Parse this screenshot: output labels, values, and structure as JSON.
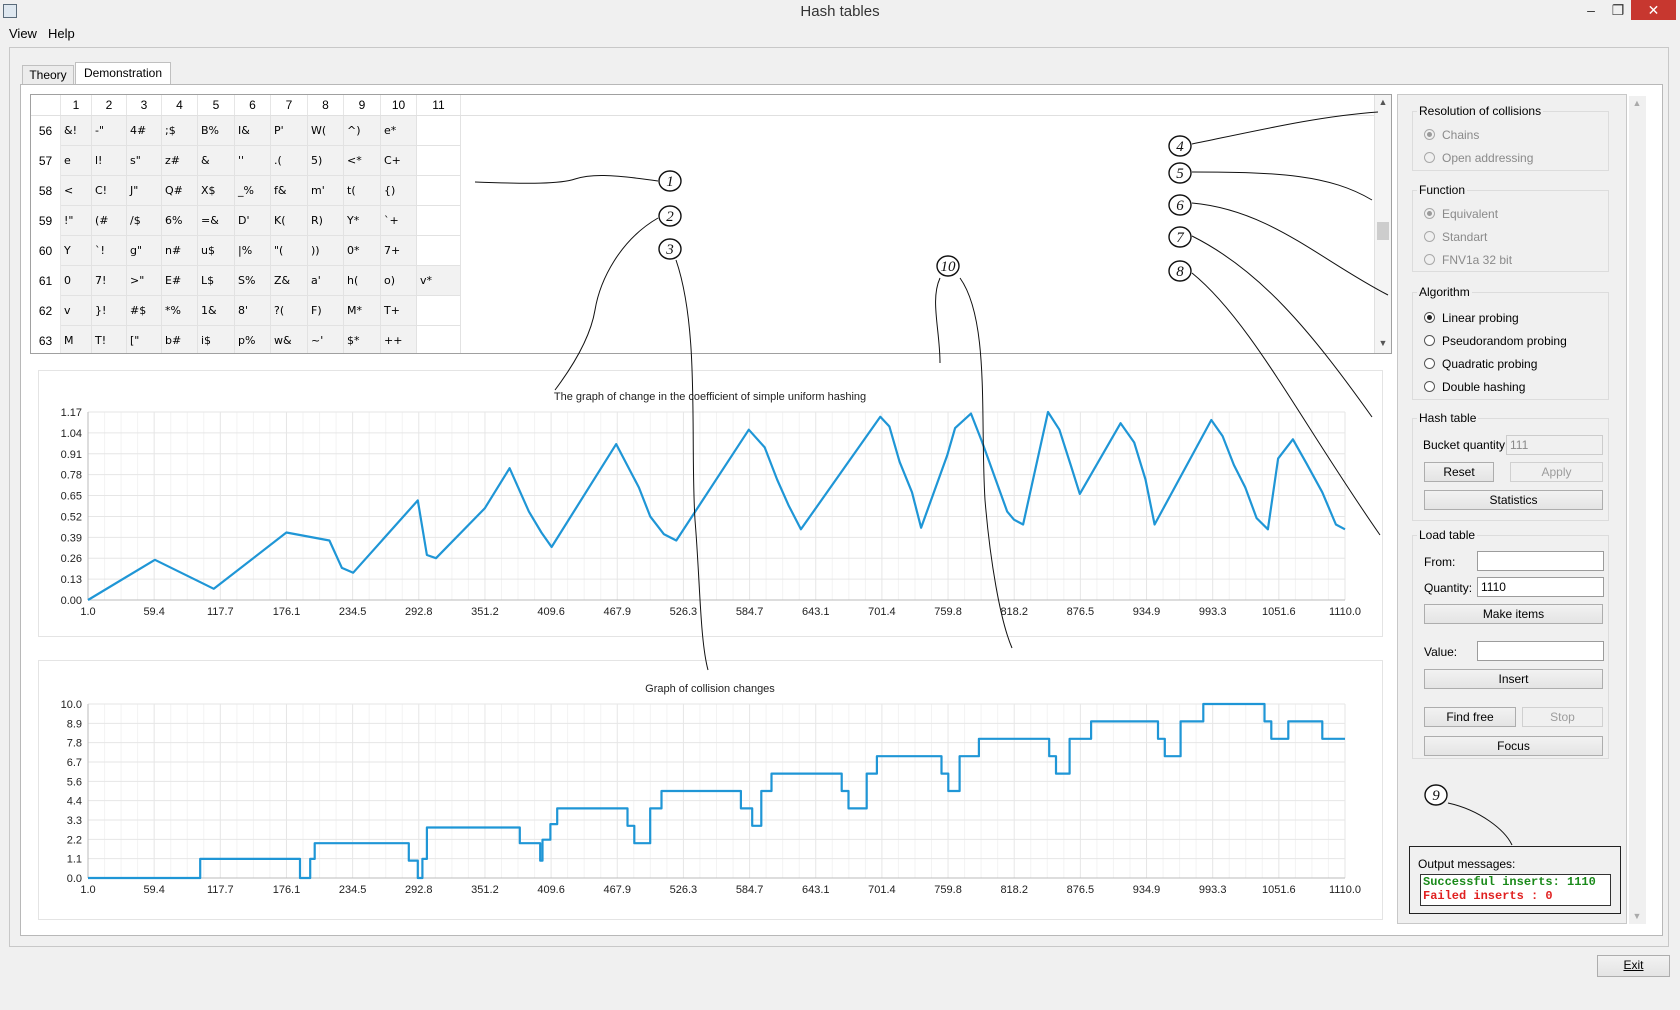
{
  "window": {
    "title": "Hash tables",
    "min": "–",
    "max": "❐",
    "close": "✕"
  },
  "menu": [
    {
      "label": "View"
    },
    {
      "label": "Help"
    }
  ],
  "tabs": [
    {
      "label": "Theory"
    },
    {
      "label": "Demonstration"
    }
  ],
  "grid": {
    "columns": [
      "1",
      "2",
      "3",
      "4",
      "5",
      "6",
      "7",
      "8",
      "9",
      "10",
      "11"
    ],
    "rows": [
      {
        "idx": "56",
        "cells": [
          "&!",
          "-\"",
          "4#",
          ";$",
          "B%",
          "I&",
          "P'",
          "W(",
          "^)",
          "e*",
          ""
        ]
      },
      {
        "idx": "57",
        "cells": [
          "e",
          "l!",
          "s\"",
          "z#",
          " &",
          "''",
          ".(",
          "5)",
          "<*",
          "C+",
          ""
        ]
      },
      {
        "idx": "58",
        "cells": [
          "<",
          "C!",
          "J\"",
          "Q#",
          "X$",
          "_%",
          "f&",
          "m'",
          "t(",
          "{)",
          ""
        ]
      },
      {
        "idx": "59",
        "cells": [
          "!\"",
          "(#",
          "/$",
          "6%",
          "=&",
          "D'",
          "K(",
          "R)",
          "Y*",
          "`+",
          ""
        ]
      },
      {
        "idx": "60",
        "cells": [
          "Y",
          "`!",
          "g\"",
          "n#",
          "u$",
          "|%",
          "\"(",
          "))",
          "0*",
          "7+",
          ""
        ]
      },
      {
        "idx": "61",
        "cells": [
          "0",
          "7!",
          ">\"",
          "E#",
          "L$",
          "S%",
          "Z&",
          "a'",
          "h(",
          "o)",
          "v*"
        ]
      },
      {
        "idx": "62",
        "cells": [
          "v",
          "}!",
          "#$",
          "*%",
          "1&",
          "8'",
          "?(",
          "F)",
          "M*",
          "T+",
          ""
        ]
      },
      {
        "idx": "63",
        "cells": [
          "M",
          "T!",
          "[\"",
          "b#",
          "i$",
          "p%",
          "w&",
          "~'",
          "$*",
          "++",
          ""
        ]
      }
    ]
  },
  "annotations": [
    "1",
    "2",
    "3",
    "4",
    "5",
    "6",
    "7",
    "8",
    "9",
    "10"
  ],
  "chart_data": [
    {
      "type": "line",
      "title": "The graph of change in the coefficient of simple uniform hashing",
      "x_ticks": [
        "1.0",
        "59.4",
        "117.7",
        "176.1",
        "234.5",
        "292.8",
        "351.2",
        "409.6",
        "467.9",
        "526.3",
        "584.7",
        "643.1",
        "701.4",
        "759.8",
        "818.2",
        "876.5",
        "934.9",
        "993.3",
        "1051.6",
        "1110.0"
      ],
      "y_ticks": [
        "0.00",
        "0.13",
        "0.26",
        "0.39",
        "0.52",
        "0.65",
        "0.78",
        "0.91",
        "1.04",
        "1.17"
      ],
      "xlim": [
        1.0,
        1110.0
      ],
      "ylim": [
        0.0,
        1.17
      ],
      "color": "#1f96d6",
      "x": [
        1,
        60,
        112,
        112,
        176,
        214,
        225,
        235,
        292,
        300,
        308,
        351,
        373,
        390,
        401,
        410,
        467,
        487,
        497,
        509,
        520,
        584,
        598,
        609,
        619,
        630,
        700,
        708,
        717,
        728,
        736,
        759,
        766,
        780,
        790,
        812,
        818,
        826,
        848,
        858,
        868,
        876,
        912,
        924,
        934,
        942,
        992,
        1002,
        1012,
        1022,
        1032,
        1042,
        1051,
        1064,
        1076,
        1090,
        1102,
        1110
      ],
      "y": [
        0.0,
        0.25,
        0.07,
        0.07,
        0.42,
        0.37,
        0.2,
        0.17,
        0.62,
        0.28,
        0.26,
        0.57,
        0.82,
        0.55,
        0.42,
        0.33,
        0.97,
        0.7,
        0.52,
        0.41,
        0.37,
        1.06,
        0.95,
        0.75,
        0.59,
        0.44,
        1.14,
        1.08,
        0.86,
        0.67,
        0.45,
        0.9,
        1.07,
        1.16,
        0.98,
        0.55,
        0.5,
        0.47,
        1.17,
        1.06,
        0.84,
        0.66,
        1.1,
        0.98,
        0.75,
        0.47,
        1.12,
        1.02,
        0.84,
        0.7,
        0.51,
        0.44,
        0.88,
        1.0,
        0.85,
        0.67,
        0.47,
        0.44
      ]
    },
    {
      "type": "line",
      "title": "Graph of collision changes",
      "x_ticks": [
        "1.0",
        "59.4",
        "117.7",
        "176.1",
        "234.5",
        "292.8",
        "351.2",
        "409.6",
        "467.9",
        "526.3",
        "584.7",
        "643.1",
        "701.4",
        "759.8",
        "818.2",
        "876.5",
        "934.9",
        "993.3",
        "1051.6",
        "1110.0"
      ],
      "y_ticks": [
        "0.0",
        "1.1",
        "2.2",
        "3.3",
        "4.4",
        "5.6",
        "6.7",
        "7.8",
        "8.9",
        "10.0"
      ],
      "xlim": [
        1.0,
        1110.0
      ],
      "ylim": [
        0.0,
        10.0
      ],
      "color": "#1f96d6",
      "x": [
        1,
        100,
        100,
        188,
        188,
        197,
        197,
        201,
        201,
        284,
        284,
        292,
        292,
        296,
        296,
        300,
        300,
        382,
        382,
        400,
        400,
        402,
        402,
        409,
        409,
        415,
        415,
        477,
        477,
        483,
        483,
        497,
        497,
        507,
        507,
        577,
        577,
        587,
        587,
        595,
        595,
        604,
        604,
        666,
        666,
        672,
        672,
        688,
        688,
        697,
        697,
        754,
        754,
        760,
        760,
        770,
        770,
        787,
        787,
        849,
        849,
        855,
        855,
        867,
        867,
        886,
        886,
        945,
        945,
        951,
        951,
        965,
        965,
        985,
        985,
        1039,
        1039,
        1045,
        1045,
        1060,
        1060,
        1090,
        1090,
        1110
      ],
      "y": [
        0.0,
        0.0,
        1.1,
        1.1,
        0.0,
        0.0,
        1.1,
        1.1,
        2.0,
        2.0,
        1.0,
        1.0,
        0.0,
        0.0,
        1.1,
        1.1,
        2.9,
        2.9,
        2.0,
        2.0,
        1.0,
        1.0,
        2.2,
        2.2,
        3.1,
        3.1,
        4.0,
        4.0,
        3.0,
        3.0,
        2.0,
        2.0,
        4.0,
        4.0,
        5.0,
        5.0,
        4.0,
        4.0,
        3.0,
        3.0,
        5.0,
        5.0,
        6.0,
        6.0,
        5.0,
        5.0,
        4.0,
        4.0,
        6.0,
        6.0,
        7.0,
        7.0,
        6.0,
        6.0,
        5.0,
        5.0,
        7.0,
        7.0,
        8.0,
        8.0,
        7.0,
        7.0,
        6.0,
        6.0,
        8.0,
        8.0,
        9.0,
        9.0,
        8.0,
        8.0,
        7.0,
        7.0,
        9.0,
        9.0,
        10.0,
        10.0,
        9.0,
        9.0,
        8.0,
        8.0,
        9.0,
        9.0,
        8.0,
        8.0
      ]
    }
  ],
  "side": {
    "resolution": {
      "title": "Resolution of collisions",
      "options": [
        "Chains",
        "Open addressing"
      ]
    },
    "function": {
      "title": "Function",
      "options": [
        "Equivalent",
        "Standart",
        "FNV1a 32 bit"
      ]
    },
    "algorithm": {
      "title": "Algorithm",
      "options": [
        "Linear probing",
        "Pseudorandom probing",
        "Quadratic probing",
        "Double hashing"
      ]
    },
    "hashtable": {
      "title": "Hash table",
      "bucket_label": "Bucket quantity:",
      "bucket_value": "111",
      "reset": "Reset",
      "apply": "Apply",
      "statistics": "Statistics"
    },
    "load": {
      "title": "Load table",
      "from_label": "From:",
      "from_value": "",
      "qty_label": "Quantity:",
      "qty_value": "1110",
      "make": "Make items",
      "value_label": "Value:",
      "value_value": "",
      "insert": "Insert",
      "find": "Find free",
      "stop": "Stop",
      "focus": "Focus"
    },
    "output": {
      "title": "Output messages:",
      "line1": "Successful inserts: 1110",
      "line2": "Failed inserts    : 0",
      "color_ok": "#1a8a1a",
      "color_fail": "#e02020"
    }
  },
  "exit": "Exit"
}
